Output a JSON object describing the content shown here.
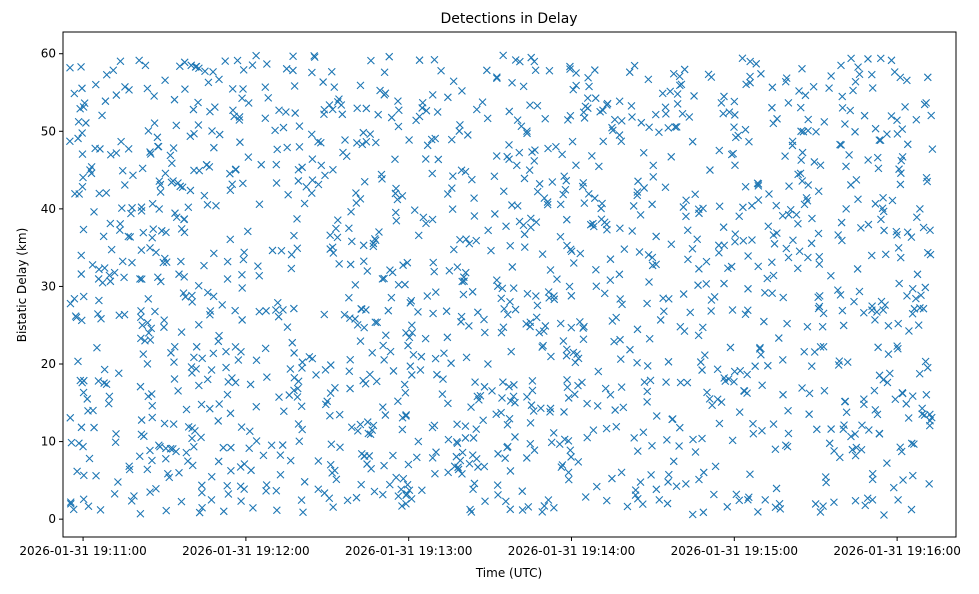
{
  "chart_data": {
    "type": "scatter",
    "title": "Detections in Delay",
    "xlabel": "Time (UTC)",
    "ylabel": "Bistatic Delay (km)",
    "x_origin": "2026-01-31 19:11:00",
    "x_units": "seconds since x_origin",
    "xlim": [
      -7.4,
      321.7
    ],
    "ylim": [
      -2.3,
      62.8
    ],
    "x_ticks": [
      {
        "value": 0,
        "label": "2026-01-31 19:11:00"
      },
      {
        "value": 60,
        "label": "2026-01-31 19:12:00"
      },
      {
        "value": 120,
        "label": "2026-01-31 19:13:00"
      },
      {
        "value": 180,
        "label": "2026-01-31 19:14:00"
      },
      {
        "value": 240,
        "label": "2026-01-31 19:15:00"
      },
      {
        "value": 300,
        "label": "2026-01-31 19:16:00"
      }
    ],
    "y_ticks": [
      {
        "value": 0,
        "label": "0"
      },
      {
        "value": 10,
        "label": "10"
      },
      {
        "value": 20,
        "label": "20"
      },
      {
        "value": 30,
        "label": "30"
      },
      {
        "value": 40,
        "label": "40"
      },
      {
        "value": 50,
        "label": "50"
      },
      {
        "value": 60,
        "label": "60"
      }
    ],
    "series": [
      {
        "name": "detections",
        "marker": "x",
        "color": "#1f77b4",
        "point_count": 1500,
        "distribution": "uniform",
        "x_range": [
          -5,
          313
        ],
        "y_range": [
          0.5,
          59.8
        ],
        "seed": 20260131
      }
    ],
    "grid": false,
    "legend": "none"
  }
}
